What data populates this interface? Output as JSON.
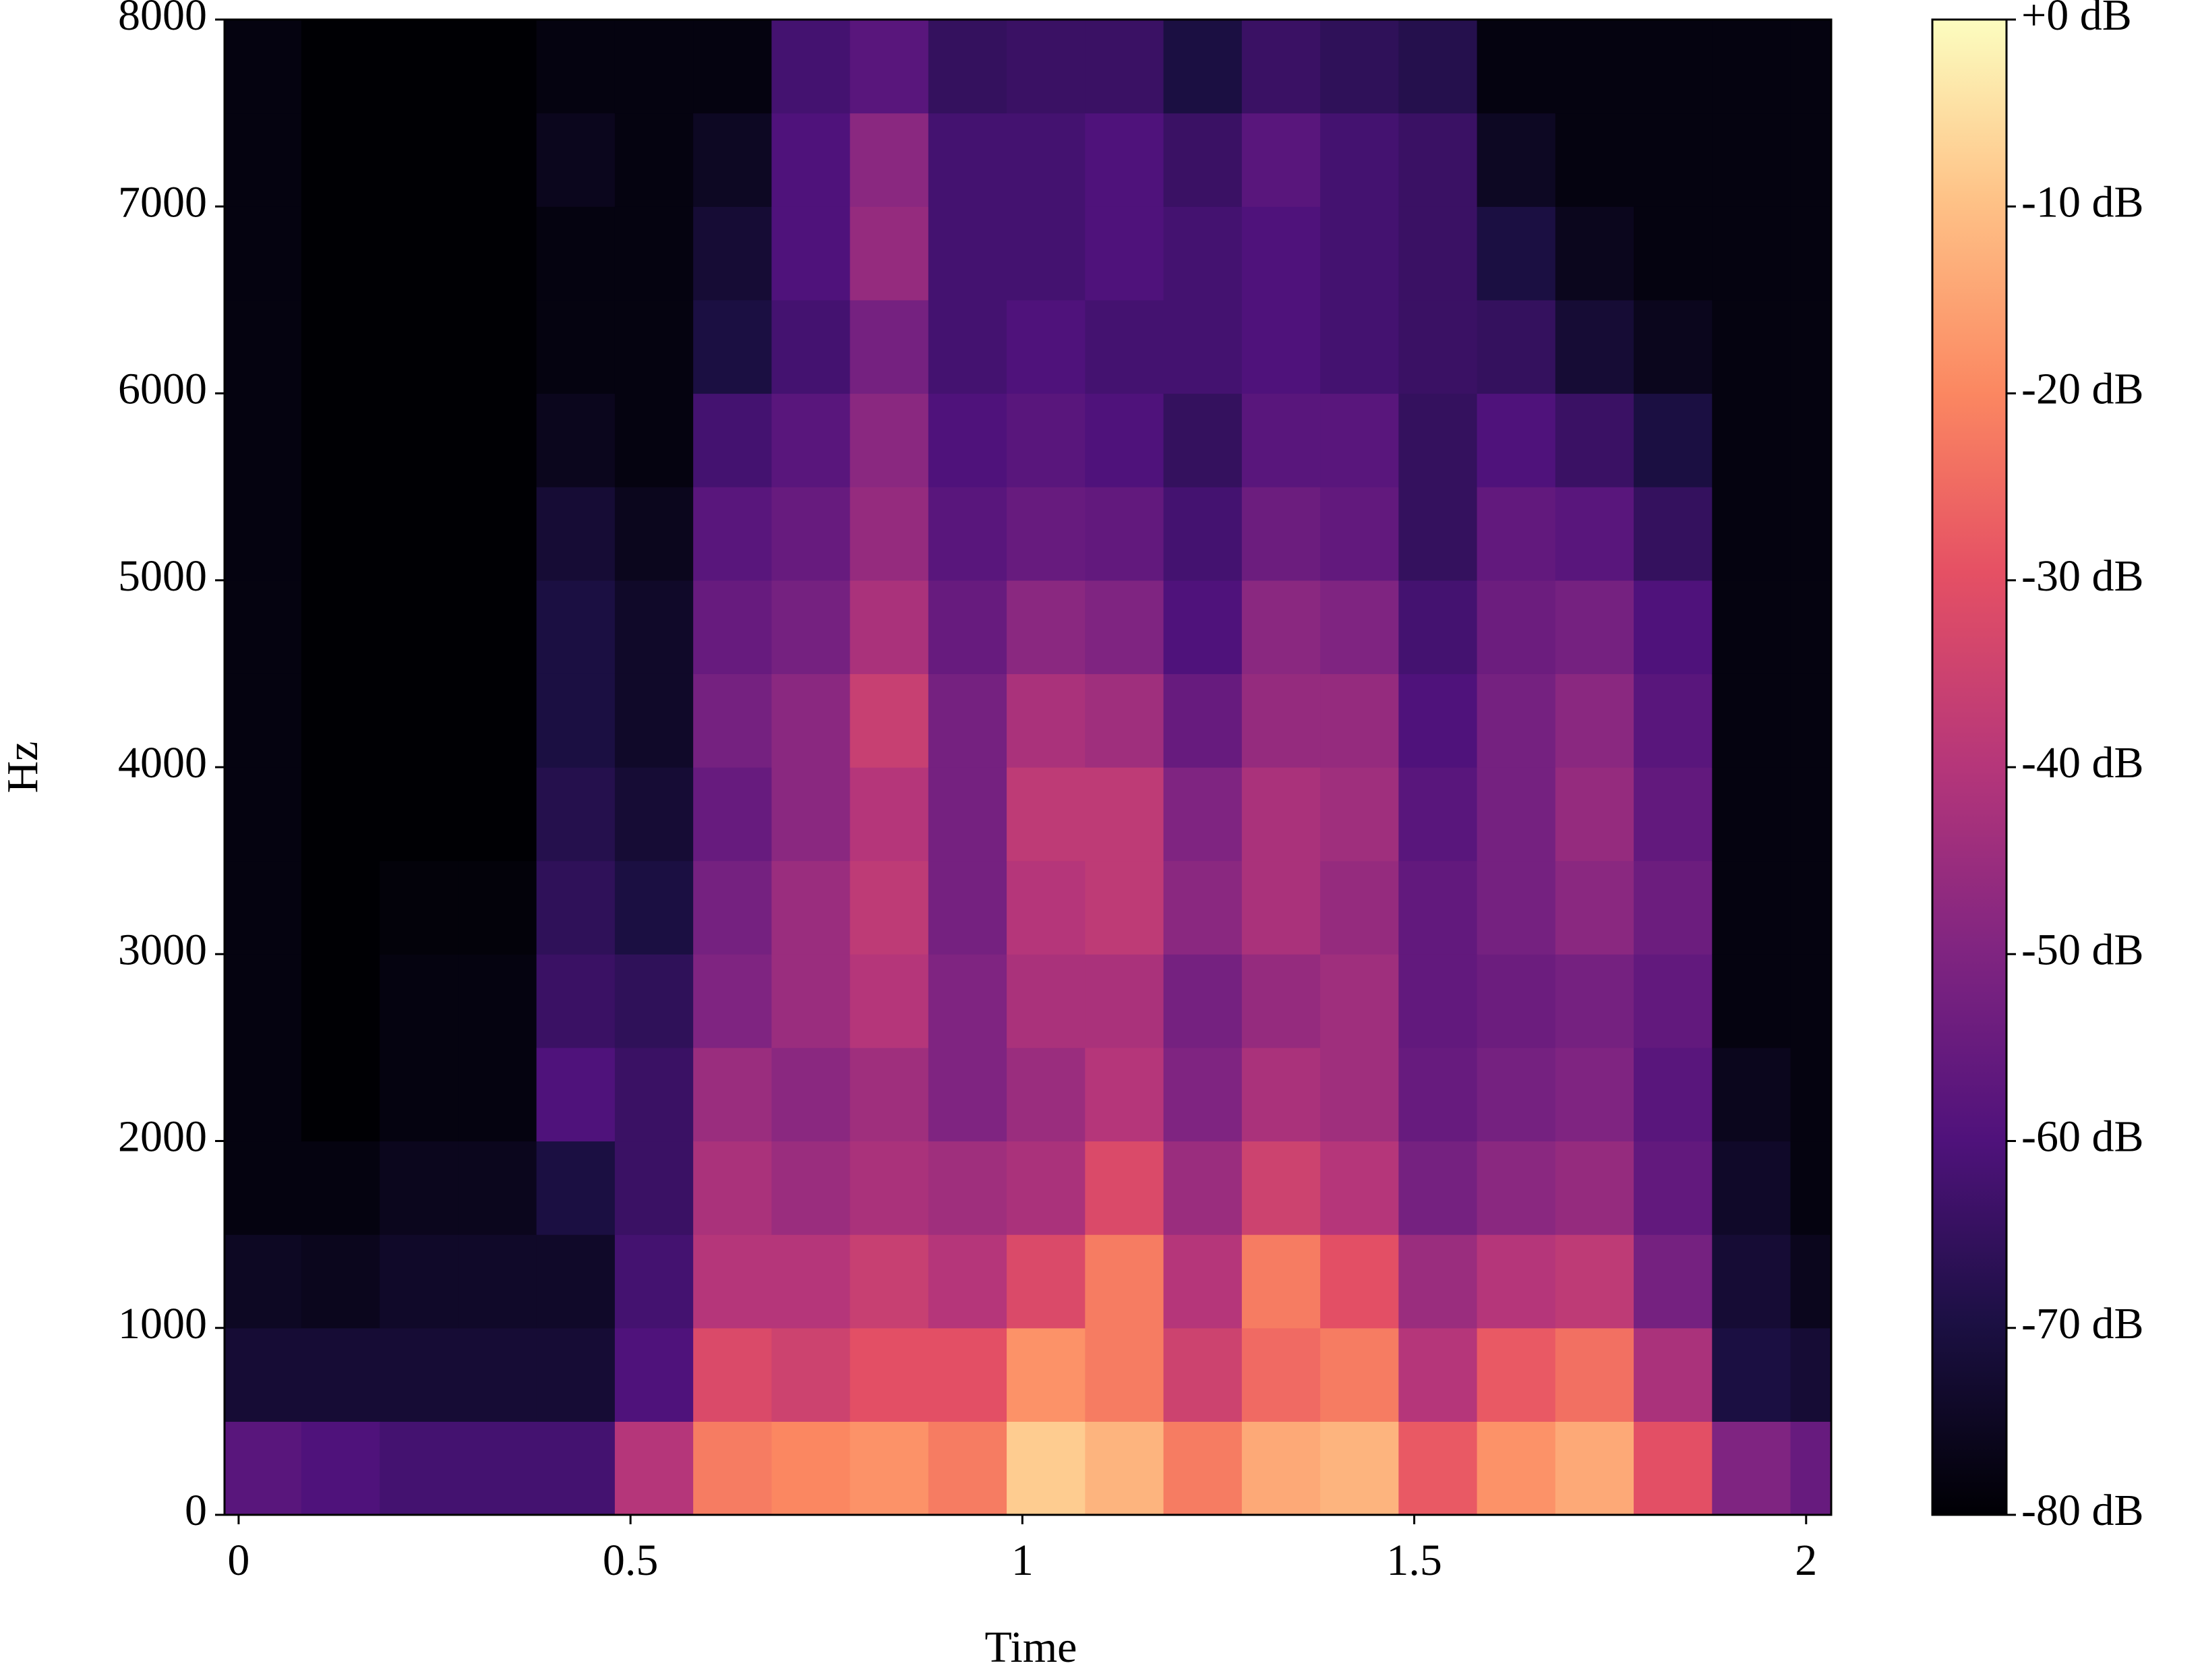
{
  "chart_data": {
    "type": "spectrogram",
    "xlabel": "Time",
    "ylabel": "Hz",
    "colormap": "magma",
    "xlim": [
      -0.018,
      2.032
    ],
    "ylim": [
      0,
      8000
    ],
    "xticks": [
      0,
      0.5,
      1,
      1.5,
      2
    ],
    "yticks": [
      0,
      1000,
      2000,
      3000,
      4000,
      5000,
      6000,
      7000,
      8000
    ],
    "clim": [
      -80,
      0
    ],
    "cticks": [
      {
        "value": 0,
        "label": "+0 dB"
      },
      {
        "value": -10,
        "label": "-10 dB"
      },
      {
        "value": -20,
        "label": "-20 dB"
      },
      {
        "value": -30,
        "label": "-30 dB"
      },
      {
        "value": -40,
        "label": "-40 dB"
      },
      {
        "value": -50,
        "label": "-50 dB"
      },
      {
        "value": -60,
        "label": "-60 dB"
      },
      {
        "value": -70,
        "label": "-70 dB"
      },
      {
        "value": -80,
        "label": "-80 dB"
      }
    ],
    "x_bins": [
      -0.02,
      0.08,
      0.18,
      0.28,
      0.38,
      0.48,
      0.58,
      0.68,
      0.78,
      0.88,
      0.98,
      1.08,
      1.18,
      1.28,
      1.38,
      1.48,
      1.58,
      1.68,
      1.78,
      1.88,
      1.98,
      2.08
    ],
    "y_bins": [
      0,
      500,
      1000,
      1500,
      2000,
      2500,
      3000,
      3500,
      4000,
      4500,
      5000,
      5500,
      6000,
      6500,
      7000,
      7500,
      8000
    ],
    "values": [
      [
        -58,
        -72,
        -75,
        -78,
        -78,
        -78,
        -78,
        -78,
        -78,
        -78,
        -78,
        -78,
        -78,
        -78,
        -78,
        -78
      ],
      [
        -60,
        -72,
        -76,
        -78,
        -80,
        -80,
        -80,
        -80,
        -80,
        -80,
        -80,
        -80,
        -80,
        -80,
        -80,
        -80
      ],
      [
        -62,
        -72,
        -74,
        -76,
        -78,
        -78,
        -79,
        -80,
        -80,
        -80,
        -80,
        -80,
        -80,
        -80,
        -80,
        -80
      ],
      [
        -62,
        -72,
        -74,
        -76,
        -78,
        -78,
        -79,
        -80,
        -80,
        -80,
        -80,
        -80,
        -80,
        -80,
        -80,
        -80
      ],
      [
        -62,
        -72,
        -74,
        -70,
        -60,
        -64,
        -66,
        -68,
        -70,
        -70,
        -72,
        -76,
        -78,
        -78,
        -76,
        -78
      ],
      [
        -40,
        -60,
        -62,
        -64,
        -64,
        -66,
        -70,
        -72,
        -74,
        -74,
        -76,
        -78,
        -78,
        -78,
        -78,
        -78
      ],
      [
        -22,
        -32,
        -40,
        -42,
        -45,
        -50,
        -52,
        -55,
        -52,
        -55,
        -58,
        -62,
        -70,
        -72,
        -75,
        -78
      ],
      [
        -20,
        -35,
        -40,
        -45,
        -48,
        -45,
        -45,
        -48,
        -48,
        -52,
        -55,
        -58,
        -62,
        -60,
        -60,
        -62
      ],
      [
        -18,
        -30,
        -36,
        -42,
        -44,
        -40,
        -38,
        -40,
        -36,
        -42,
        -46,
        -48,
        -52,
        -46,
        -48,
        -58
      ],
      [
        -22,
        -30,
        -40,
        -44,
        -50,
        -50,
        -52,
        -52,
        -52,
        -55,
        -58,
        -60,
        -62,
        -62,
        -62,
        -65
      ],
      [
        -8,
        -18,
        -32,
        -42,
        -45,
        -42,
        -40,
        -38,
        -42,
        -48,
        -55,
        -58,
        -60,
        -62,
        -62,
        -64
      ],
      [
        -12,
        -22,
        -22,
        -32,
        -40,
        -42,
        -38,
        -38,
        -44,
        -50,
        -56,
        -60,
        -62,
        -60,
        -60,
        -64
      ],
      [
        -22,
        -35,
        -40,
        -45,
        -50,
        -52,
        -48,
        -50,
        -55,
        -60,
        -62,
        -65,
        -62,
        -62,
        -64,
        -70
      ],
      [
        -14,
        -25,
        -22,
        -35,
        -42,
        -46,
        -42,
        -42,
        -46,
        -48,
        -54,
        -58,
        -60,
        -60,
        -58,
        -64
      ],
      [
        -12,
        -22,
        -30,
        -40,
        -44,
        -44,
        -46,
        -44,
        -46,
        -50,
        -56,
        -58,
        -62,
        -62,
        -62,
        -66
      ],
      [
        -28,
        -40,
        -45,
        -52,
        -55,
        -56,
        -56,
        -58,
        -60,
        -62,
        -65,
        -65,
        -64,
        -64,
        -64,
        -68
      ],
      [
        -18,
        -28,
        -40,
        -48,
        -52,
        -54,
        -52,
        -52,
        -52,
        -54,
        -56,
        -60,
        -65,
        -70,
        -75,
        -78
      ],
      [
        -14,
        -24,
        -38,
        -46,
        -50,
        -52,
        -48,
        -46,
        -48,
        -52,
        -58,
        -64,
        -72,
        -76,
        -78,
        -78
      ],
      [
        -30,
        -42,
        -52,
        -56,
        -58,
        -56,
        -54,
        -56,
        -58,
        -60,
        -65,
        -70,
        -76,
        -78,
        -78,
        -78
      ],
      [
        -50,
        -70,
        -72,
        -74,
        -76,
        -78,
        -78,
        -78,
        -78,
        -78,
        -78,
        -78,
        -78,
        -78,
        -78,
        -78
      ],
      [
        -55,
        -72,
        -76,
        -78,
        -78,
        -78,
        -78,
        -78,
        -78,
        -78,
        -78,
        -78,
        -78,
        -78,
        -78,
        -78
      ]
    ]
  }
}
